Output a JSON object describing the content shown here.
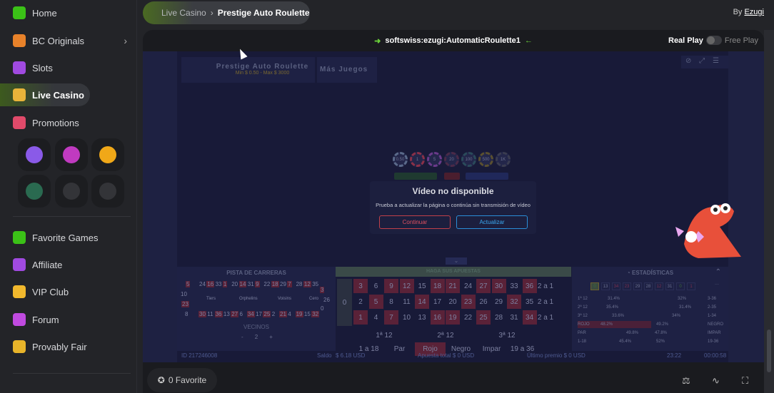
{
  "sidebar": {
    "items": [
      {
        "label": "Home",
        "icon": "home-icon",
        "color": "#3bc117"
      },
      {
        "label": "BC Originals",
        "icon": "originals-icon",
        "color": "#e8822a",
        "chevron": true
      },
      {
        "label": "Slots",
        "icon": "slots-icon",
        "color": "#a04ae0"
      },
      {
        "label": "Live Casino",
        "icon": "live-casino-icon",
        "color": "#e9b43a",
        "active": true
      },
      {
        "label": "Promotions",
        "icon": "promotions-icon",
        "color": "#e04a6a"
      },
      {
        "label": "Favorite Games",
        "icon": "star-icon",
        "color": "#3bc117"
      },
      {
        "label": "Affiliate",
        "icon": "affiliate-icon",
        "color": "#a04ae0"
      },
      {
        "label": "VIP Club",
        "icon": "crown-icon",
        "color": "#f1b82d"
      },
      {
        "label": "Forum",
        "icon": "forum-icon",
        "color": "#c04ae0"
      },
      {
        "label": "Provably Fair",
        "icon": "provably-fair-icon",
        "color": "#e8b42a"
      }
    ],
    "tiles": [
      "target-icon",
      "wheel-icon",
      "piggy-bank-icon",
      "rocket-icon",
      "ticket-icon",
      "coins-icon"
    ]
  },
  "breadcrumb": {
    "parent": "Live Casino",
    "separator": "›",
    "current": "Prestige Auto Roulette"
  },
  "provider": {
    "by": "By",
    "name": "Ezugi"
  },
  "game": {
    "id_label": "softswiss:ezugi:AutomaticRoulette1",
    "real": "Real Play",
    "free": "Free Play",
    "title": "Prestige Auto Roulette",
    "limits": "Min $ 0.50 - Max $ 3000",
    "more": "Más Juegos",
    "chips": [
      "0.50",
      "1",
      "5",
      "20",
      "100",
      "500",
      "1K"
    ],
    "dialog": {
      "title": "Vídeo no disponible",
      "message": "Prueba a actualizar la página o continúa sin transmisión de vídeo",
      "continue": "Continuar",
      "refresh": "Actualizar"
    },
    "racetrack": {
      "title": "PISTA DE CARRERAS",
      "top": [
        "24",
        "16",
        "33",
        "1",
        "20",
        "14",
        "31",
        "9",
        "22",
        "18",
        "29",
        "7",
        "28",
        "12",
        "35"
      ],
      "bottom": [
        "30",
        "11",
        "36",
        "13",
        "27",
        "6",
        "34",
        "17",
        "25",
        "2",
        "21",
        "4",
        "19",
        "15",
        "32"
      ],
      "left": [
        "5",
        "10",
        "23",
        "8"
      ],
      "right": [
        "3",
        "26",
        "0"
      ],
      "sections": [
        "Tiers",
        "Orphelins",
        "Voisins",
        "Cero"
      ],
      "neighbors": "VECINOS",
      "minus": "-",
      "count": "2",
      "plus": "+"
    },
    "betting": {
      "title": "HAGA SUS APUESTAS",
      "zero": "0",
      "rows": [
        [
          "3",
          "6",
          "9",
          "12",
          "15",
          "18",
          "21",
          "24",
          "27",
          "30",
          "33",
          "36"
        ],
        [
          "2",
          "5",
          "8",
          "11",
          "14",
          "17",
          "20",
          "23",
          "26",
          "29",
          "32",
          "35"
        ],
        [
          "1",
          "4",
          "7",
          "10",
          "13",
          "16",
          "19",
          "22",
          "25",
          "28",
          "31",
          "34"
        ]
      ],
      "column": "2 a 1",
      "red": [
        "1",
        "3",
        "5",
        "7",
        "9",
        "12",
        "14",
        "16",
        "18",
        "19",
        "21",
        "23",
        "25",
        "27",
        "30",
        "32",
        "34",
        "36"
      ],
      "dozens": [
        "1ª 12",
        "2ª 12",
        "3ª 12"
      ],
      "outside": [
        "1 a 18",
        "Par",
        "Rojo",
        "Negro",
        "Impar",
        "19 a 36"
      ]
    },
    "stats": {
      "title": "ESTADÍSTICAS",
      "recent": [
        "0",
        "13",
        "34",
        "23",
        "29",
        "28",
        "12",
        "31",
        "0",
        "1"
      ],
      "more": "···",
      "rows": [
        [
          "1ª 12",
          "31.4%",
          "32%",
          "3-36"
        ],
        [
          "2ª 12",
          "35.4%",
          "31.4%",
          "2-35"
        ],
        [
          "3ª 12",
          "33.6%",
          "34%",
          "1-34"
        ],
        [
          "ROJO",
          "48.2%",
          "49.2%",
          "NEGRO"
        ],
        [
          "PAR",
          "49.8%",
          "47.8%",
          "IMPAR"
        ],
        [
          "1-18",
          "45.4%",
          "52%",
          "19-36"
        ]
      ]
    },
    "footer": {
      "id": "ID 217246008",
      "balance_label": "Saldo",
      "balance": "$ 6.18 USD",
      "total": "Apuesta total $ 0 USD",
      "last": "Último premio $ 0 USD",
      "time": "23:22",
      "timer": "00:00:58"
    }
  },
  "bottom": {
    "favorite": "0 Favorite"
  }
}
